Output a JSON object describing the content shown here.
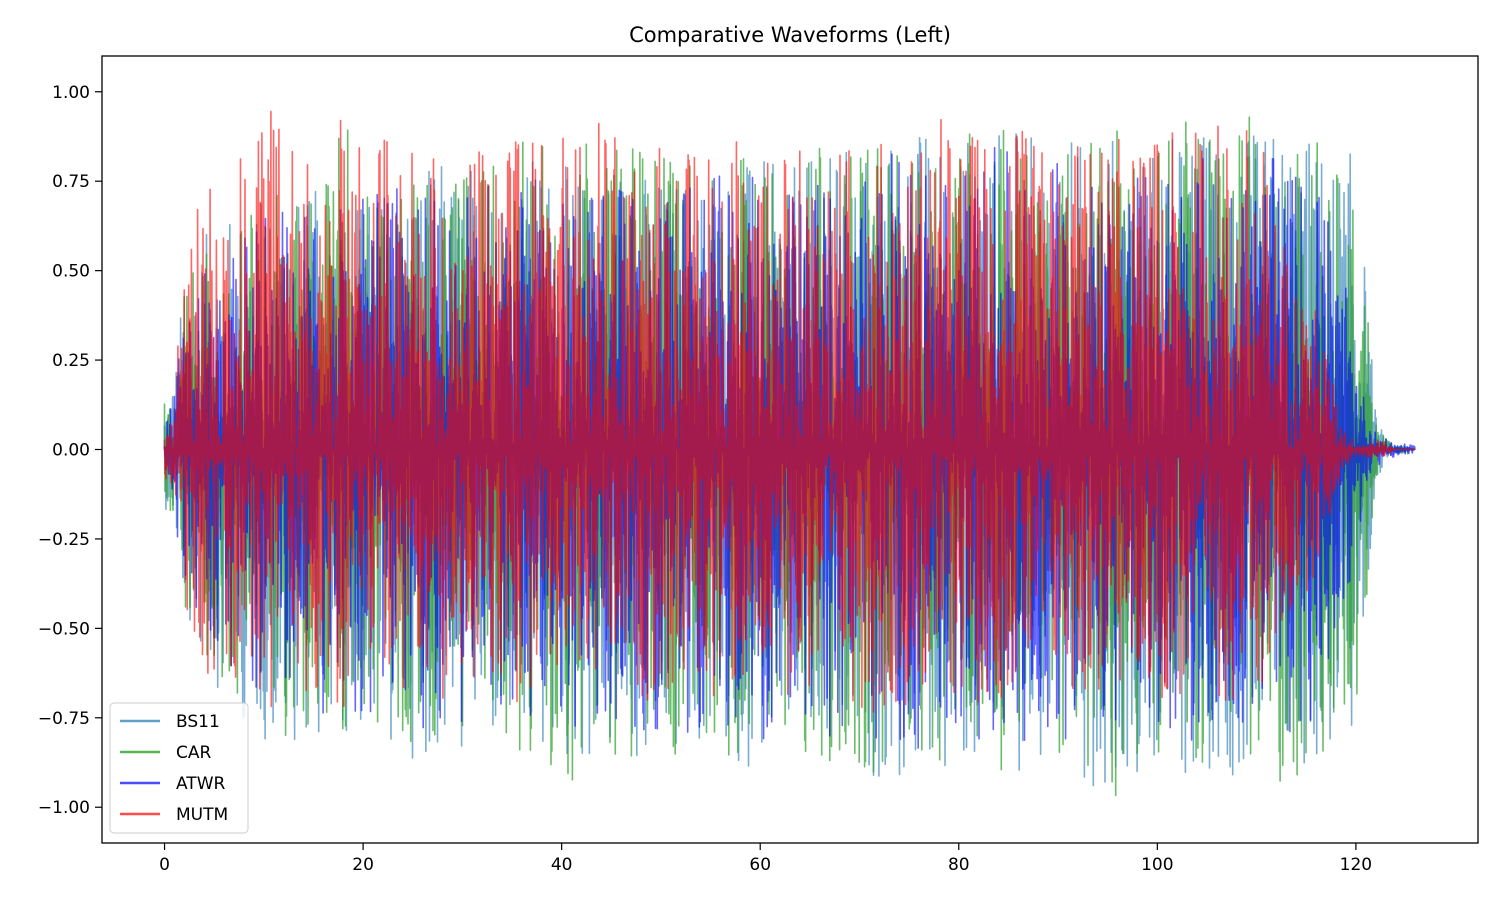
{
  "chart_data": {
    "type": "line",
    "title": "Comparative Waveforms (Left)",
    "xlabel": "",
    "ylabel": "",
    "xlim": [
      -6.3,
      132.3
    ],
    "ylim": [
      -1.1,
      1.1
    ],
    "x_ticks": [
      0,
      20,
      40,
      60,
      80,
      100,
      120
    ],
    "x_tick_labels": [
      "0",
      "20",
      "40",
      "60",
      "80",
      "100",
      "120"
    ],
    "y_ticks": [
      1.0,
      0.75,
      0.5,
      0.25,
      0.0,
      -0.25,
      -0.5,
      -0.75,
      -1.0
    ],
    "y_tick_labels": [
      "1.00",
      "0.75",
      "0.50",
      "0.25",
      "0.00",
      "−0.25",
      "−0.50",
      "−0.75",
      "−1.00"
    ],
    "grid": false,
    "legend_position": "lower-left",
    "envelope_x": [
      0,
      1,
      2,
      3,
      4,
      6,
      8,
      10,
      12,
      14,
      16,
      18,
      20,
      22,
      24,
      26,
      28,
      30,
      32,
      34,
      36,
      38,
      40,
      42,
      44,
      46,
      48,
      50,
      52,
      54,
      56,
      58,
      60,
      62,
      64,
      66,
      68,
      70,
      72,
      74,
      76,
      78,
      80,
      82,
      84,
      86,
      88,
      90,
      92,
      94,
      96,
      98,
      100,
      102,
      104,
      106,
      108,
      110,
      112,
      114,
      116,
      117,
      118,
      119,
      120,
      121,
      122,
      123,
      124,
      125,
      126
    ],
    "series": [
      {
        "name": "BS11",
        "color": "#1f77b4",
        "opacity": 0.6,
        "env_top": [
          0.14,
          0.2,
          0.5,
          0.55,
          0.6,
          0.65,
          0.7,
          0.72,
          0.75,
          0.7,
          0.75,
          0.7,
          0.72,
          0.75,
          0.8,
          0.78,
          0.82,
          0.8,
          0.85,
          0.8,
          0.82,
          0.85,
          0.8,
          0.78,
          0.82,
          0.85,
          0.8,
          0.78,
          0.8,
          0.8,
          0.82,
          0.8,
          0.83,
          0.78,
          0.8,
          0.82,
          0.85,
          0.88,
          0.9,
          0.88,
          0.92,
          0.9,
          0.88,
          0.9,
          0.92,
          0.9,
          0.88,
          0.9,
          0.88,
          0.9,
          0.88,
          0.85,
          0.9,
          0.88,
          0.9,
          0.92,
          0.9,
          0.88,
          0.92,
          0.9,
          0.88,
          0.85,
          0.8,
          0.85,
          0.82,
          0.5,
          0.1,
          0.03,
          0.01,
          0.01,
          0.0
        ],
        "env_bottom": [
          -0.16,
          -0.22,
          -0.5,
          -0.55,
          -0.6,
          -0.7,
          -0.78,
          -0.82,
          -0.85,
          -0.8,
          -0.82,
          -0.85,
          -0.8,
          -0.82,
          -0.88,
          -0.85,
          -0.9,
          -0.88,
          -0.85,
          -0.88,
          -0.9,
          -0.88,
          -0.92,
          -0.9,
          -0.88,
          -0.9,
          -0.92,
          -0.9,
          -0.88,
          -0.85,
          -0.88,
          -0.9,
          -0.88,
          -0.85,
          -0.88,
          -0.9,
          -0.92,
          -0.95,
          -0.92,
          -0.97,
          -0.95,
          -0.9,
          -0.92,
          -0.95,
          -0.92,
          -0.9,
          -0.92,
          -0.9,
          -0.92,
          -0.95,
          -0.92,
          -0.9,
          -0.92,
          -0.95,
          -0.92,
          -0.9,
          -0.92,
          -0.9,
          -0.95,
          -0.92,
          -0.9,
          -0.88,
          -0.85,
          -0.88,
          -0.8,
          -0.5,
          -0.1,
          -0.03,
          -0.01,
          -0.01,
          0.0
        ]
      },
      {
        "name": "CAR",
        "color": "#2ca02c",
        "opacity": 0.7,
        "env_top": [
          0.14,
          0.18,
          0.48,
          0.52,
          0.55,
          0.6,
          0.68,
          0.7,
          0.72,
          0.7,
          0.72,
          0.95,
          0.75,
          0.72,
          0.78,
          0.75,
          0.8,
          0.78,
          0.82,
          0.8,
          0.88,
          0.85,
          0.8,
          0.9,
          0.85,
          0.88,
          0.85,
          0.92,
          0.85,
          0.8,
          0.82,
          0.85,
          0.82,
          0.8,
          0.82,
          0.85,
          0.88,
          0.9,
          0.95,
          0.92,
          0.9,
          0.92,
          0.88,
          0.9,
          0.95,
          0.92,
          0.88,
          0.9,
          0.88,
          0.92,
          0.9,
          0.88,
          0.92,
          0.95,
          0.9,
          0.92,
          0.9,
          0.95,
          0.92,
          0.9,
          0.88,
          0.8,
          0.78,
          0.78,
          0.75,
          0.45,
          0.08,
          0.03,
          0.01,
          0.01,
          0.0
        ],
        "env_bottom": [
          -0.16,
          -0.2,
          -0.5,
          -0.55,
          -0.58,
          -0.65,
          -0.72,
          -0.78,
          -0.82,
          -0.78,
          -0.8,
          -0.82,
          -0.78,
          -0.8,
          -0.85,
          -0.82,
          -0.88,
          -0.85,
          -0.82,
          -0.85,
          -0.88,
          -0.85,
          -0.98,
          -0.88,
          -0.85,
          -0.88,
          -0.9,
          -0.88,
          -0.85,
          -0.82,
          -0.85,
          -0.88,
          -0.85,
          -0.82,
          -0.85,
          -0.88,
          -0.9,
          -0.92,
          -0.9,
          -0.95,
          -0.98,
          -0.88,
          -0.9,
          -0.92,
          -0.9,
          -0.88,
          -0.9,
          -0.88,
          -0.9,
          -0.92,
          -0.98,
          -0.88,
          -1.0,
          -0.92,
          -0.9,
          -0.88,
          -0.9,
          -0.88,
          -0.92,
          -0.98,
          -0.88,
          -0.85,
          -0.82,
          -0.85,
          -0.78,
          -0.45,
          -0.08,
          -0.03,
          -0.01,
          -0.01,
          0.0
        ]
      },
      {
        "name": "ATWR",
        "color": "#0000ff",
        "opacity": 0.6,
        "env_top": [
          0.1,
          0.15,
          0.4,
          0.45,
          0.5,
          0.55,
          0.6,
          0.65,
          0.7,
          0.65,
          0.7,
          0.68,
          0.7,
          0.72,
          0.75,
          0.72,
          0.75,
          0.72,
          0.75,
          0.72,
          0.78,
          0.75,
          0.78,
          0.72,
          0.75,
          0.78,
          0.75,
          0.72,
          0.75,
          0.72,
          0.78,
          0.75,
          0.78,
          0.72,
          0.75,
          0.78,
          0.8,
          0.82,
          0.85,
          0.82,
          0.85,
          0.82,
          0.8,
          0.82,
          0.85,
          0.82,
          0.8,
          0.82,
          0.8,
          0.82,
          0.8,
          0.78,
          0.82,
          0.8,
          0.82,
          0.85,
          0.82,
          0.8,
          0.82,
          0.8,
          0.78,
          0.72,
          0.5,
          0.45,
          0.3,
          0.12,
          0.05,
          0.03,
          0.02,
          0.015,
          0.01
        ],
        "env_bottom": [
          -0.12,
          -0.18,
          -0.42,
          -0.48,
          -0.52,
          -0.58,
          -0.65,
          -0.7,
          -0.78,
          -0.72,
          -0.75,
          -0.72,
          -0.75,
          -0.78,
          -0.8,
          -0.78,
          -0.8,
          -0.78,
          -0.75,
          -0.78,
          -0.8,
          -0.78,
          -0.82,
          -0.78,
          -0.8,
          -0.82,
          -0.8,
          -0.78,
          -0.8,
          -0.78,
          -0.82,
          -0.8,
          -0.82,
          -0.78,
          -0.8,
          -0.82,
          -0.85,
          -0.82,
          -0.85,
          -0.82,
          -0.85,
          -0.82,
          -0.8,
          -0.82,
          -0.85,
          -0.82,
          -0.8,
          -0.82,
          -0.8,
          -0.82,
          -0.8,
          -0.78,
          -0.82,
          -0.8,
          -0.82,
          -0.85,
          -0.82,
          -0.8,
          -0.82,
          -0.8,
          -0.78,
          -0.72,
          -0.5,
          -0.45,
          -0.3,
          -0.12,
          -0.05,
          -0.03,
          -0.02,
          -0.015,
          -0.01
        ]
      },
      {
        "name": "MUTM",
        "color": "#ff0000",
        "opacity": 0.6,
        "env_top": [
          0.08,
          0.15,
          0.55,
          0.6,
          0.85,
          0.7,
          0.85,
          0.97,
          0.9,
          0.8,
          0.85,
          0.97,
          0.88,
          0.92,
          0.85,
          0.9,
          0.85,
          0.82,
          0.88,
          0.85,
          0.9,
          0.85,
          0.88,
          0.85,
          0.95,
          0.88,
          0.85,
          0.9,
          0.88,
          0.85,
          0.95,
          0.88,
          0.85,
          0.82,
          0.85,
          0.88,
          0.85,
          0.9,
          0.88,
          0.85,
          0.9,
          0.95,
          0.88,
          0.92,
          0.97,
          0.9,
          0.88,
          0.85,
          0.88,
          0.9,
          0.88,
          0.85,
          0.9,
          0.88,
          0.92,
          0.95,
          0.92,
          0.95,
          0.7,
          0.5,
          0.4,
          0.3,
          0.15,
          0.05,
          0.02,
          0.02,
          0.03,
          0.02,
          0.0,
          0.0,
          0.0
        ],
        "env_bottom": [
          -0.08,
          -0.15,
          -0.52,
          -0.58,
          -0.68,
          -0.65,
          -0.72,
          -0.75,
          -0.72,
          -0.7,
          -0.72,
          -0.75,
          -0.72,
          -0.7,
          -0.72,
          -0.68,
          -0.7,
          -0.68,
          -0.7,
          -0.68,
          -0.72,
          -0.7,
          -0.72,
          -0.7,
          -0.72,
          -0.68,
          -0.7,
          -0.72,
          -0.7,
          -0.68,
          -0.72,
          -0.7,
          -0.72,
          -0.68,
          -0.7,
          -0.72,
          -0.7,
          -0.72,
          -0.75,
          -0.72,
          -0.7,
          -0.72,
          -0.7,
          -0.72,
          -0.7,
          -0.68,
          -0.7,
          -0.68,
          -0.7,
          -0.72,
          -0.7,
          -0.68,
          -0.7,
          -0.72,
          -0.7,
          -0.72,
          -0.7,
          -0.72,
          -0.6,
          -0.45,
          -0.35,
          -0.25,
          -0.12,
          -0.05,
          -0.02,
          -0.02,
          -0.03,
          -0.02,
          0.0,
          0.0,
          0.0
        ]
      }
    ]
  }
}
